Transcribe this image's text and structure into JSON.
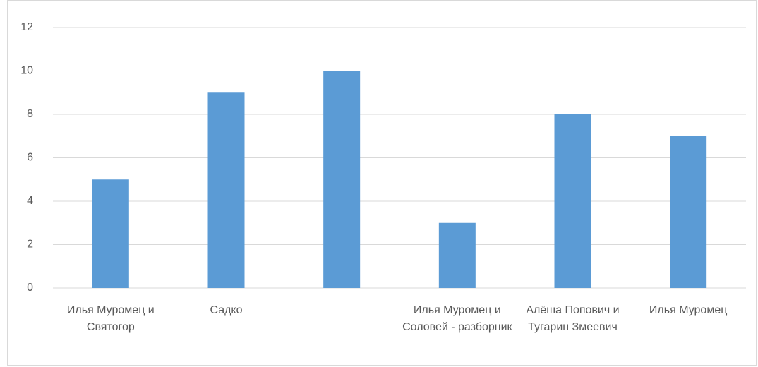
{
  "chart_data": {
    "type": "bar",
    "categories": [
      "Илья Муромец и Святогор",
      "Садко",
      null,
      "Илья Муромец и Соловей - разборник",
      "Алёша Попович и Тугарин Змеевич",
      "Илья Муромец"
    ],
    "values": [
      5,
      9,
      10,
      3,
      8,
      7
    ],
    "color": "#5b9bd5",
    "ylim": [
      0,
      12
    ],
    "yticks": [
      0,
      2,
      4,
      6,
      8,
      10,
      12
    ],
    "grid": true
  }
}
